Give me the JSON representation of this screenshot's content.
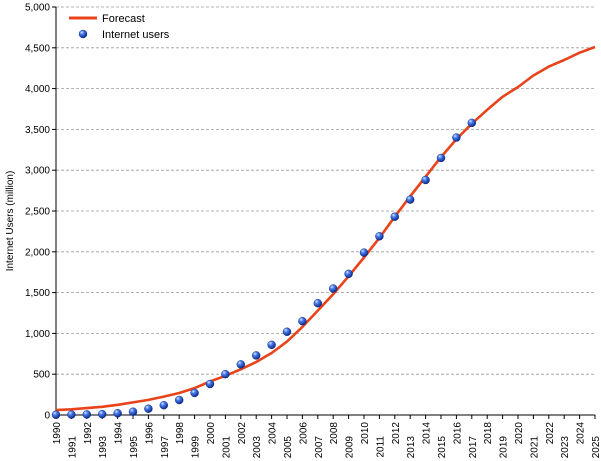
{
  "chart_data": {
    "type": "line",
    "title": "",
    "xlabel": "",
    "ylabel": "Internet Users (million)",
    "xlim": [
      1990,
      2025
    ],
    "ylim": [
      0,
      5000
    ],
    "y_ticks": [
      0,
      500,
      1000,
      1500,
      2000,
      2500,
      3000,
      3500,
      4000,
      4500,
      5000
    ],
    "y_tick_labels": [
      "0",
      "500",
      "1,000",
      "1,500",
      "2,000",
      "2,500",
      "3,000",
      "3,500",
      "4,000",
      "4,500",
      "5,000"
    ],
    "x_tick_labels": [
      "1990",
      "1991",
      "1992",
      "1993",
      "1994",
      "1995",
      "1996",
      "1997",
      "1998",
      "1999",
      "2000",
      "2001",
      "2002",
      "2003",
      "2004",
      "2005",
      "2006",
      "2007",
      "2008",
      "2009",
      "2010",
      "2011",
      "2012",
      "2013",
      "2014",
      "2015",
      "2016",
      "2017",
      "2018",
      "2019",
      "2020",
      "2021",
      "2022",
      "2023",
      "2024",
      "2025"
    ],
    "grid": "horizontal dashed",
    "legend_position": "top-left",
    "series": [
      {
        "name": "Forecast",
        "style": "line",
        "color": "#e8431b",
        "x": [
          1990,
          1991,
          1992,
          1993,
          1994,
          1995,
          1996,
          1997,
          1998,
          1999,
          2000,
          2001,
          2002,
          2003,
          2004,
          2005,
          2006,
          2007,
          2008,
          2009,
          2010,
          2011,
          2012,
          2013,
          2014,
          2015,
          2016,
          2017,
          2018,
          2019,
          2020,
          2021,
          2022,
          2023,
          2024,
          2025
        ],
        "values": [
          60,
          70,
          85,
          100,
          125,
          155,
          185,
          225,
          270,
          330,
          410,
          480,
          560,
          650,
          760,
          900,
          1080,
          1280,
          1480,
          1700,
          1930,
          2170,
          2430,
          2680,
          2920,
          3160,
          3380,
          3570,
          3740,
          3900,
          4020,
          4160,
          4270,
          4350,
          4440,
          4510
        ]
      },
      {
        "name": "Internet users",
        "style": "markers",
        "color": "#1f4fd1",
        "x": [
          1990,
          1991,
          1992,
          1993,
          1994,
          1995,
          1996,
          1997,
          1998,
          1999,
          2000,
          2001,
          2002,
          2003,
          2004,
          2005,
          2006,
          2007,
          2008,
          2009,
          2010,
          2011,
          2012,
          2013,
          2014,
          2015,
          2016,
          2017
        ],
        "values": [
          3,
          5,
          7,
          10,
          21,
          40,
          77,
          120,
          184,
          270,
          380,
          500,
          620,
          730,
          860,
          1020,
          1150,
          1370,
          1550,
          1730,
          1990,
          2190,
          2430,
          2640,
          2880,
          3150,
          3400,
          3580
        ]
      }
    ]
  }
}
